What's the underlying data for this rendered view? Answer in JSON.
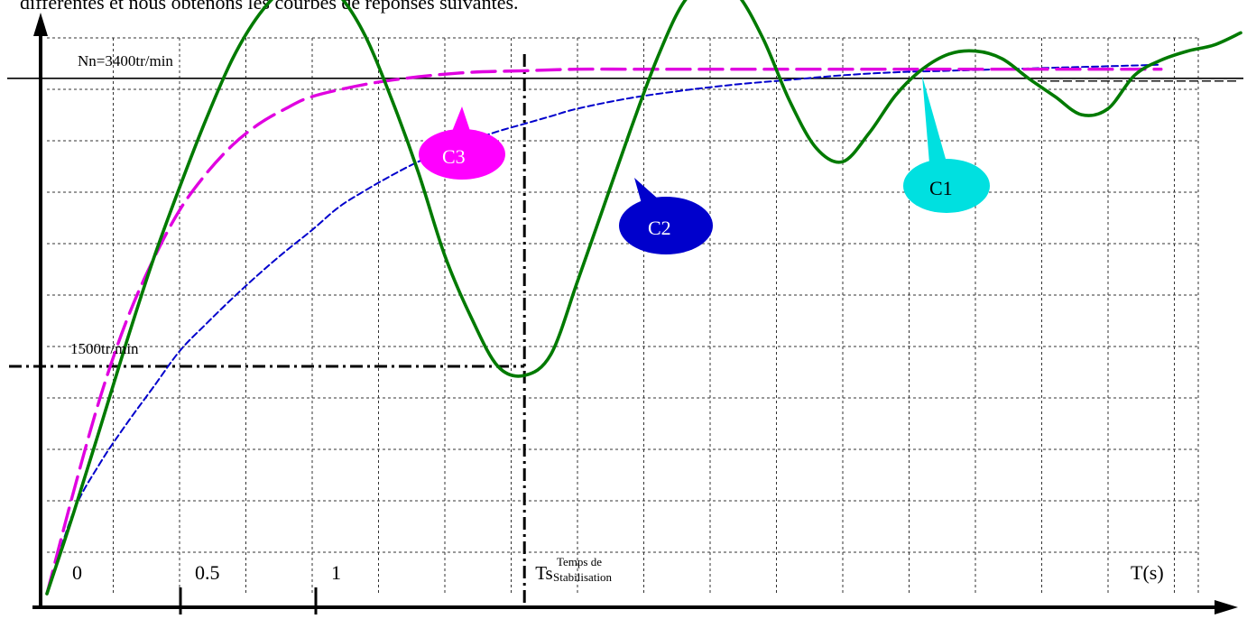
{
  "header_text": "différentes et nous obtenons les courbes de réponses suivantes.",
  "chart_data": {
    "type": "line",
    "title": "",
    "xlabel": "T(s)",
    "ylabel": "",
    "x_tick_labels": [
      {
        "label": "0",
        "x": 0
      },
      {
        "label": "0.5",
        "x": 0.5
      },
      {
        "label": "1",
        "x": 1
      }
    ],
    "xlim": [
      0,
      4.5
    ],
    "ylim": [
      0,
      4000
    ],
    "grid": true,
    "reference_lines": [
      {
        "name": "nominal",
        "label": "Nn=3400tr/min",
        "axis": "y",
        "value": 3400,
        "style": "solid"
      },
      {
        "name": "level-1500",
        "label": "1500tr/min",
        "axis": "y",
        "value": 1500,
        "style": "dash-dot"
      },
      {
        "name": "stabilisation-time",
        "label": "Ts",
        "axis": "x",
        "value": 1.8,
        "style": "dash-dot"
      }
    ],
    "annotation_note": "Temps de Stabilisation",
    "series": [
      {
        "name": "C1",
        "color": "#007a00",
        "style": "solid",
        "x": [
          0,
          0.1,
          0.2,
          0.3,
          0.4,
          0.5,
          0.6,
          0.7,
          0.8,
          0.9,
          1.0,
          1.1,
          1.2,
          1.3,
          1.4,
          1.5,
          1.6,
          1.7,
          1.8,
          1.9,
          2.0,
          2.1,
          2.2,
          2.3,
          2.4,
          2.5,
          2.6,
          2.7,
          2.8,
          2.9,
          3.0,
          3.1,
          3.2,
          3.3,
          3.4,
          3.5,
          3.6,
          3.7,
          3.8,
          3.9,
          4.0,
          4.1,
          4.2,
          4.3,
          4.4,
          4.5
        ],
        "y": [
          0,
          530,
          1090,
          1660,
          2200,
          2680,
          3130,
          3530,
          3820,
          4000,
          4050,
          3950,
          3680,
          3260,
          2780,
          2230,
          1820,
          1500,
          1440,
          1580,
          2060,
          2560,
          3060,
          3530,
          3900,
          4050,
          3960,
          3660,
          3250,
          2940,
          2850,
          3040,
          3290,
          3460,
          3560,
          3580,
          3530,
          3400,
          3280,
          3160,
          3200,
          3420,
          3520,
          3580,
          3620,
          3700
        ]
      },
      {
        "name": "C2",
        "color": "#0000cc",
        "style": "dashed",
        "x": [
          0,
          0.1,
          0.2,
          0.3,
          0.4,
          0.5,
          0.6,
          0.7,
          0.8,
          0.9,
          1.0,
          1.1,
          1.2,
          1.3,
          1.4,
          1.5,
          1.6,
          1.7,
          1.8,
          1.9,
          2.0,
          2.2,
          2.4,
          2.6,
          2.8,
          3.0,
          3.2,
          3.4,
          3.6,
          3.8,
          4.0,
          4.2
        ],
        "y": [
          0,
          540,
          860,
          1120,
          1360,
          1600,
          1780,
          1950,
          2110,
          2260,
          2400,
          2550,
          2660,
          2760,
          2850,
          2920,
          2990,
          3050,
          3100,
          3150,
          3200,
          3270,
          3320,
          3360,
          3390,
          3420,
          3440,
          3450,
          3460,
          3470,
          3480,
          3490
        ]
      },
      {
        "name": "C3",
        "color": "#e000e0",
        "style": "long-dash",
        "x": [
          0,
          0.1,
          0.2,
          0.3,
          0.4,
          0.5,
          0.6,
          0.7,
          0.8,
          0.9,
          1.0,
          1.2,
          1.4,
          1.6,
          1.8,
          2.0,
          2.2,
          2.4,
          2.6,
          2.8,
          3.0,
          3.2,
          3.4,
          3.6,
          3.8,
          4.0,
          4.2
        ],
        "y": [
          0,
          670,
          1290,
          1800,
          2200,
          2530,
          2770,
          2960,
          3100,
          3200,
          3280,
          3360,
          3410,
          3440,
          3450,
          3460,
          3460,
          3460,
          3460,
          3460,
          3460,
          3460,
          3460,
          3460,
          3460,
          3460,
          3460
        ]
      }
    ],
    "callouts": [
      {
        "label": "C1",
        "series": "C1",
        "color": "#00e0e0"
      },
      {
        "label": "C2",
        "series": "C2",
        "color": "#0000cc"
      },
      {
        "label": "C3",
        "series": "C3",
        "color": "#ff00ff"
      }
    ]
  }
}
